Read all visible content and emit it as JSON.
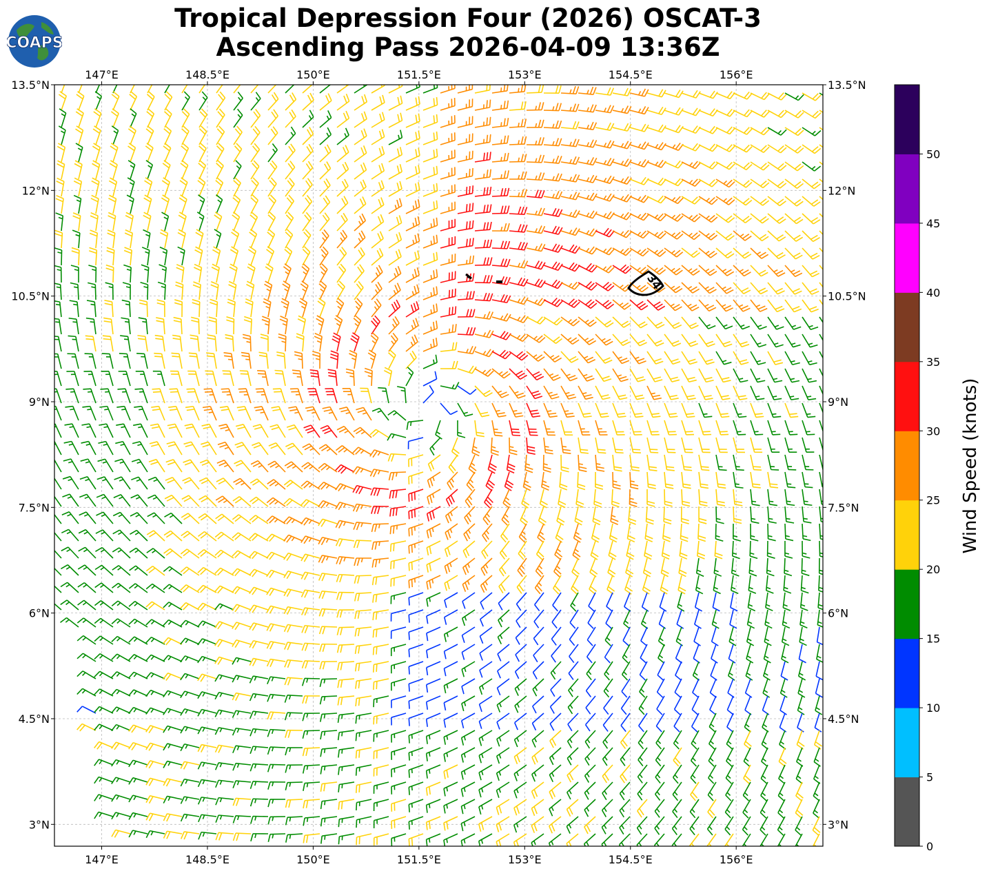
{
  "title": {
    "line1": "Tropical Depression Four (2026) OSCAT-3",
    "line2": "Ascending Pass 2026-04-09 13:36Z"
  },
  "logo": {
    "text": "COAPS",
    "icon": "globe-logo-icon"
  },
  "map": {
    "lon_labels": [
      "147°E",
      "148.5°E",
      "150°E",
      "151.5°E",
      "153°E",
      "154.5°E",
      "156°E"
    ],
    "lon_values": [
      147,
      148.5,
      150,
      151.5,
      153,
      154.5,
      156
    ],
    "lat_labels": [
      "13.5°N",
      "12°N",
      "10.5°N",
      "9°N",
      "7.5°N",
      "6°N",
      "4.5°N",
      "3°N"
    ],
    "lat_values": [
      13.5,
      12,
      10.5,
      9,
      7.5,
      6,
      4.5,
      3
    ],
    "lon_range": [
      146.33,
      157.23
    ],
    "lat_range": [
      2.69,
      13.5
    ],
    "storm_center": {
      "lon": 151.6,
      "lat": 8.9
    },
    "contour_label": "34",
    "gridlines": true
  },
  "colorbar": {
    "label": "Wind Speed (knots)",
    "tick_labels": [
      "0",
      "5",
      "10",
      "15",
      "20",
      "25",
      "30",
      "35",
      "40",
      "45",
      "50"
    ],
    "tick_values": [
      0,
      5,
      10,
      15,
      20,
      25,
      30,
      35,
      40,
      45,
      50
    ],
    "max": 55,
    "colors": [
      "#555555",
      "#00bfff",
      "#0035ff",
      "#008c00",
      "#ffd20a",
      "#ff8c00",
      "#ff1010",
      "#7d3b22",
      "#ff00ff",
      "#8000c0",
      "#2c005c"
    ]
  }
}
